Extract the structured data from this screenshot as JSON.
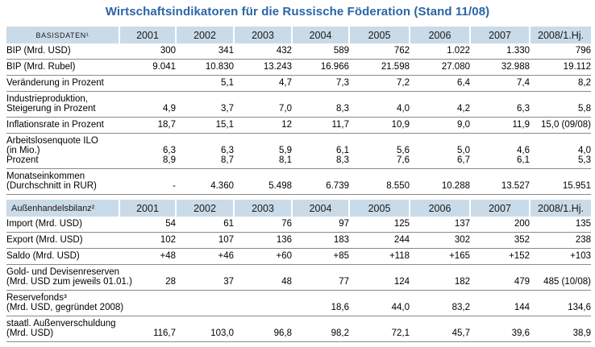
{
  "title": "Wirtschaftsindikatoren für die Russische Föderation (Stand 11/08)",
  "colors": {
    "title_text": "#2b65a5",
    "header_band_bg": "#c9dbe9",
    "row_line": "#8a8a8a"
  },
  "columns": [
    "2001",
    "2002",
    "2003",
    "2004",
    "2005",
    "2006",
    "2007",
    "2008/1.Hj."
  ],
  "sections": [
    {
      "header": {
        "label": "BASISDATEN¹",
        "align": "center"
      },
      "rows": [
        {
          "label_lines": [
            "BIP (Mrd. USD)"
          ],
          "values": [
            [
              "300",
              "341",
              "432",
              "589",
              "762",
              "1.022",
              "1.330",
              "796"
            ]
          ]
        },
        {
          "label_lines": [
            "BIP (Mrd. Rubel)"
          ],
          "values": [
            [
              "9.041",
              "10.830",
              "13.243",
              "16.966",
              "21.598",
              "27.080",
              "32.988",
              "19.112"
            ]
          ]
        },
        {
          "label_lines": [
            "Veränderung in Prozent"
          ],
          "values": [
            [
              "",
              "5,1",
              "4,7",
              "7,3",
              "7,2",
              "6,4",
              "7,4",
              "8,2"
            ]
          ]
        },
        {
          "label_lines": [
            "Industrieproduktion,",
            "Steigerung in Prozent"
          ],
          "values": [
            [
              "4,9",
              "3,7",
              "7,0",
              "8,3",
              "4,0",
              "4,2",
              "6,3",
              "5,8"
            ]
          ]
        },
        {
          "label_lines": [
            "Inflationsrate in Prozent"
          ],
          "values": [
            [
              "18,7",
              "15,1",
              "12",
              "11,7",
              "10,9",
              "9,0",
              "11,9",
              "15,0 (09/08)"
            ]
          ]
        },
        {
          "label_lines": [
            "Arbeitslosenquote ILO",
            "(in Mio.)",
            "Prozent"
          ],
          "values": [
            [
              "6,3",
              "6,3",
              "5,9",
              "6,1",
              "5,6",
              "5,0",
              "4,6",
              "4,0"
            ],
            [
              "8,9",
              "8,7",
              "8,1",
              "8,3",
              "7,6",
              "6,7",
              "6,1",
              "5,3"
            ]
          ]
        },
        {
          "label_lines": [
            "Monatseinkommen",
            "(Durchschnitt in RUR)"
          ],
          "values": [
            [
              "-",
              "4.360",
              "5.498",
              "6.739",
              "8.550",
              "10.288",
              "13.527",
              "15.951"
            ]
          ]
        }
      ]
    },
    {
      "header": {
        "label": "Außenhandelsbilanz²",
        "align": "left"
      },
      "rows": [
        {
          "label_lines": [
            "Import (Mrd. USD)"
          ],
          "values": [
            [
              "54",
              "61",
              "76",
              "97",
              "125",
              "137",
              "200",
              "135"
            ]
          ]
        },
        {
          "label_lines": [
            "Export (Mrd. USD)"
          ],
          "values": [
            [
              "102",
              "107",
              "136",
              "183",
              "244",
              "302",
              "352",
              "238"
            ]
          ]
        },
        {
          "label_lines": [
            "Saldo (Mrd. USD)"
          ],
          "values": [
            [
              "+48",
              "+46",
              "+60",
              "+85",
              "+118",
              "+165",
              "+152",
              "+103"
            ]
          ]
        },
        {
          "label_lines": [
            "Gold- und Devisenreserven",
            "(Mrd. USD zum jeweils 01.01.)"
          ],
          "values": [
            [
              "28",
              "37",
              "48",
              "77",
              "124",
              "182",
              "479",
              "485 (10/08)"
            ]
          ]
        },
        {
          "label_lines": [
            "Reservefonds³",
            "(Mrd. USD, gegründet 2008)"
          ],
          "values": [
            [
              "",
              "",
              "",
              "18,6",
              "44,0",
              "83,2",
              "144",
              "134,6"
            ]
          ]
        },
        {
          "label_lines": [
            "staatl. Außenverschuldung",
            "(Mrd. USD)"
          ],
          "values": [
            [
              "116,7",
              "103,0",
              "96,8",
              "98,2",
              "72,1",
              "45,7",
              "39,6",
              "38,9"
            ]
          ]
        }
      ]
    }
  ]
}
